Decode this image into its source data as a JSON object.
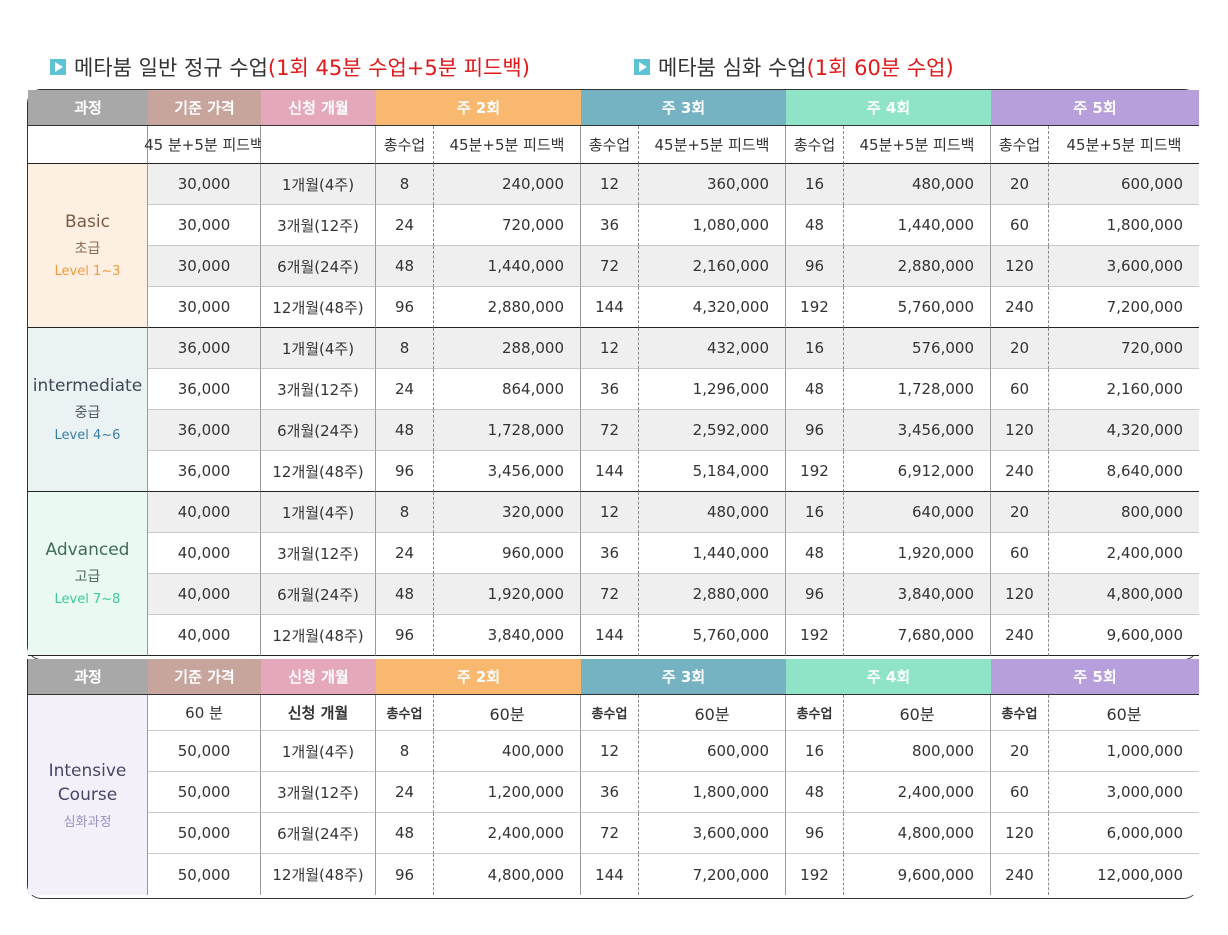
{
  "legend": [
    {
      "main": "메타붐 일반 정규 수업 ",
      "red": "(1회 45분 수업+5분 피드백)"
    },
    {
      "main": "메타붐 심화 수업",
      "red": "(1회 60분 수업)"
    }
  ],
  "colors": {
    "gray": "#a8a8a8",
    "brown": "#c7a59c",
    "pink": "#e5a8bb",
    "orange": "#f9b870",
    "teal": "#75b2c2",
    "mint": "#8fe3c7",
    "lavender": "#b69fdb",
    "accent_red": "#e0191a"
  },
  "header": {
    "course": "과정",
    "base_price": "기준 가격",
    "months": "신청 개월",
    "w2": "주 2회",
    "w3": "주 3회",
    "w4": "주 4회",
    "w5": "주 5회"
  },
  "sub45": {
    "base_big": "45 분",
    "base_small": "+5분 피드백",
    "total": "총수업",
    "fee_main": "45분",
    "fee_red": "+5분 피드백"
  },
  "sub60": {
    "base": "60 분",
    "months": "신청 개월",
    "total": "총수업",
    "fee": "60분"
  },
  "sections": [
    {
      "en": "Basic",
      "ko": "초급",
      "level": "Level 1~3",
      "bg": "#fdf0e2",
      "en_color": "#7a5c44",
      "ko_color": "#8a6a52",
      "lv_color": "#f19a3e",
      "rows": [
        {
          "price": "30,000",
          "months": "1개월(4주)",
          "c2": "8",
          "p2": "240,000",
          "c3": "12",
          "p3": "360,000",
          "c4": "16",
          "p4": "480,000",
          "c5": "20",
          "p5": "600,000"
        },
        {
          "price": "30,000",
          "months": "3개월(12주)",
          "c2": "24",
          "p2": "720,000",
          "c3": "36",
          "p3": "1,080,000",
          "c4": "48",
          "p4": "1,440,000",
          "c5": "60",
          "p5": "1,800,000"
        },
        {
          "price": "30,000",
          "months": "6개월(24주)",
          "c2": "48",
          "p2": "1,440,000",
          "c3": "72",
          "p3": "2,160,000",
          "c4": "96",
          "p4": "2,880,000",
          "c5": "120",
          "p5": "3,600,000"
        },
        {
          "price": "30,000",
          "months": "12개월(48주)",
          "c2": "96",
          "p2": "2,880,000",
          "c3": "144",
          "p3": "4,320,000",
          "c4": "192",
          "p4": "5,760,000",
          "c5": "240",
          "p5": "7,200,000"
        }
      ]
    },
    {
      "en": "intermediate",
      "ko": "중급",
      "level": "Level 4~6",
      "bg": "#eaf2f4",
      "en_color": "#3c4a52",
      "ko_color": "#4a5a62",
      "lv_color": "#3a7fa8",
      "rows": [
        {
          "price": "36,000",
          "months": "1개월(4주)",
          "c2": "8",
          "p2": "288,000",
          "c3": "12",
          "p3": "432,000",
          "c4": "16",
          "p4": "576,000",
          "c5": "20",
          "p5": "720,000"
        },
        {
          "price": "36,000",
          "months": "3개월(12주)",
          "c2": "24",
          "p2": "864,000",
          "c3": "36",
          "p3": "1,296,000",
          "c4": "48",
          "p4": "1,728,000",
          "c5": "60",
          "p5": "2,160,000"
        },
        {
          "price": "36,000",
          "months": "6개월(24주)",
          "c2": "48",
          "p2": "1,728,000",
          "c3": "72",
          "p3": "2,592,000",
          "c4": "96",
          "p4": "3,456,000",
          "c5": "120",
          "p5": "4,320,000"
        },
        {
          "price": "36,000",
          "months": "12개월(48주)",
          "c2": "96",
          "p2": "3,456,000",
          "c3": "144",
          "p3": "5,184,000",
          "c4": "192",
          "p4": "6,912,000",
          "c5": "240",
          "p5": "8,640,000"
        }
      ]
    },
    {
      "en": "Advanced",
      "ko": "고급",
      "level": "Level 7~8",
      "bg": "#eafaf3",
      "en_color": "#3f6b55",
      "ko_color": "#4a6a5a",
      "lv_color": "#3fc99a",
      "rows": [
        {
          "price": "40,000",
          "months": "1개월(4주)",
          "c2": "8",
          "p2": "320,000",
          "c3": "12",
          "p3": "480,000",
          "c4": "16",
          "p4": "640,000",
          "c5": "20",
          "p5": "800,000"
        },
        {
          "price": "40,000",
          "months": "3개월(12주)",
          "c2": "24",
          "p2": "960,000",
          "c3": "36",
          "p3": "1,440,000",
          "c4": "48",
          "p4": "1,920,000",
          "c5": "60",
          "p5": "2,400,000"
        },
        {
          "price": "40,000",
          "months": "6개월(24주)",
          "c2": "48",
          "p2": "1,920,000",
          "c3": "72",
          "p3": "2,880,000",
          "c4": "96",
          "p4": "3,840,000",
          "c5": "120",
          "p5": "4,800,000"
        },
        {
          "price": "40,000",
          "months": "12개월(48주)",
          "c2": "96",
          "p2": "3,840,000",
          "c3": "144",
          "p3": "5,760,000",
          "c4": "192",
          "p4": "7,680,000",
          "c5": "240",
          "p5": "9,600,000"
        }
      ]
    }
  ],
  "intensive": {
    "en1": "Intensive",
    "en2": "Course",
    "ko": "심화과정",
    "bg": "#f3f0f9",
    "en_color": "#4a4568",
    "ko_color": "#9a90c0",
    "rows": [
      {
        "price": "50,000",
        "months": "1개월(4주)",
        "c2": "8",
        "p2": "400,000",
        "c3": "12",
        "p3": "600,000",
        "c4": "16",
        "p4": "800,000",
        "c5": "20",
        "p5": "1,000,000"
      },
      {
        "price": "50,000",
        "months": "3개월(12주)",
        "c2": "24",
        "p2": "1,200,000",
        "c3": "36",
        "p3": "1,800,000",
        "c4": "48",
        "p4": "2,400,000",
        "c5": "60",
        "p5": "3,000,000"
      },
      {
        "price": "50,000",
        "months": "6개월(24주)",
        "c2": "48",
        "p2": "2,400,000",
        "c3": "72",
        "p3": "3,600,000",
        "c4": "96",
        "p4": "4,800,000",
        "c5": "120",
        "p5": "6,000,000"
      },
      {
        "price": "50,000",
        "months": "12개월(48주)",
        "c2": "96",
        "p2": "4,800,000",
        "c3": "144",
        "p3": "7,200,000",
        "c4": "192",
        "p4": "9,600,000",
        "c5": "240",
        "p5": "12,000,000"
      }
    ]
  }
}
